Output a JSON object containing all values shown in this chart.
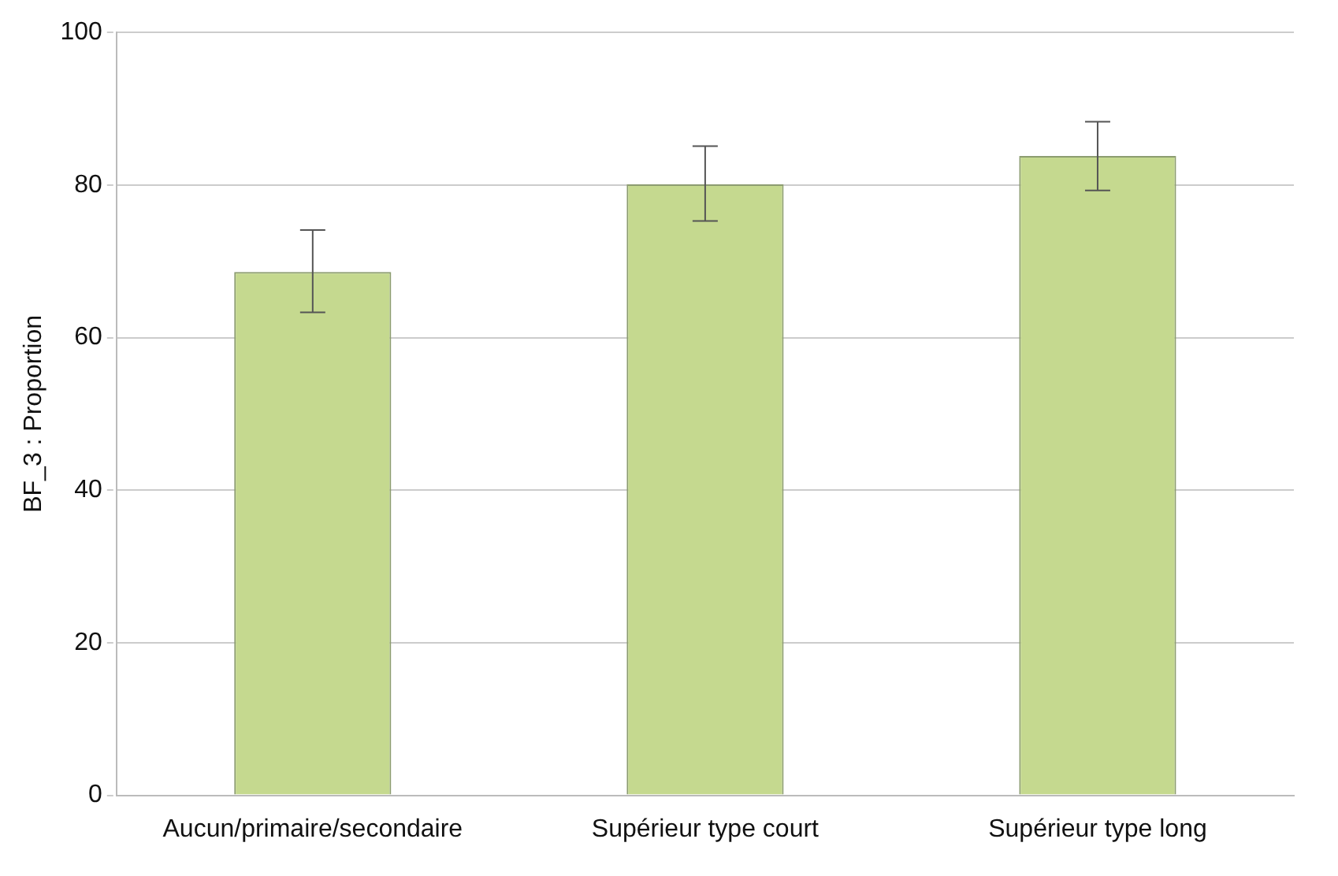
{
  "chart_data": {
    "type": "bar",
    "ylabel": "BF_3 : Proportion",
    "categories": [
      "Aucun/primaire/secondaire",
      "Supérieur type court",
      "Supérieur type long"
    ],
    "values": [
      68.6,
      80.1,
      83.8
    ],
    "errors": [
      [
        63.3,
        74.1
      ],
      [
        75.3,
        85.1
      ],
      [
        79.3,
        88.3
      ]
    ],
    "color": "#c5d98f",
    "ylim": [
      0,
      100
    ],
    "yticks": [
      0,
      20,
      40,
      60,
      80,
      100
    ],
    "grid": "y"
  }
}
